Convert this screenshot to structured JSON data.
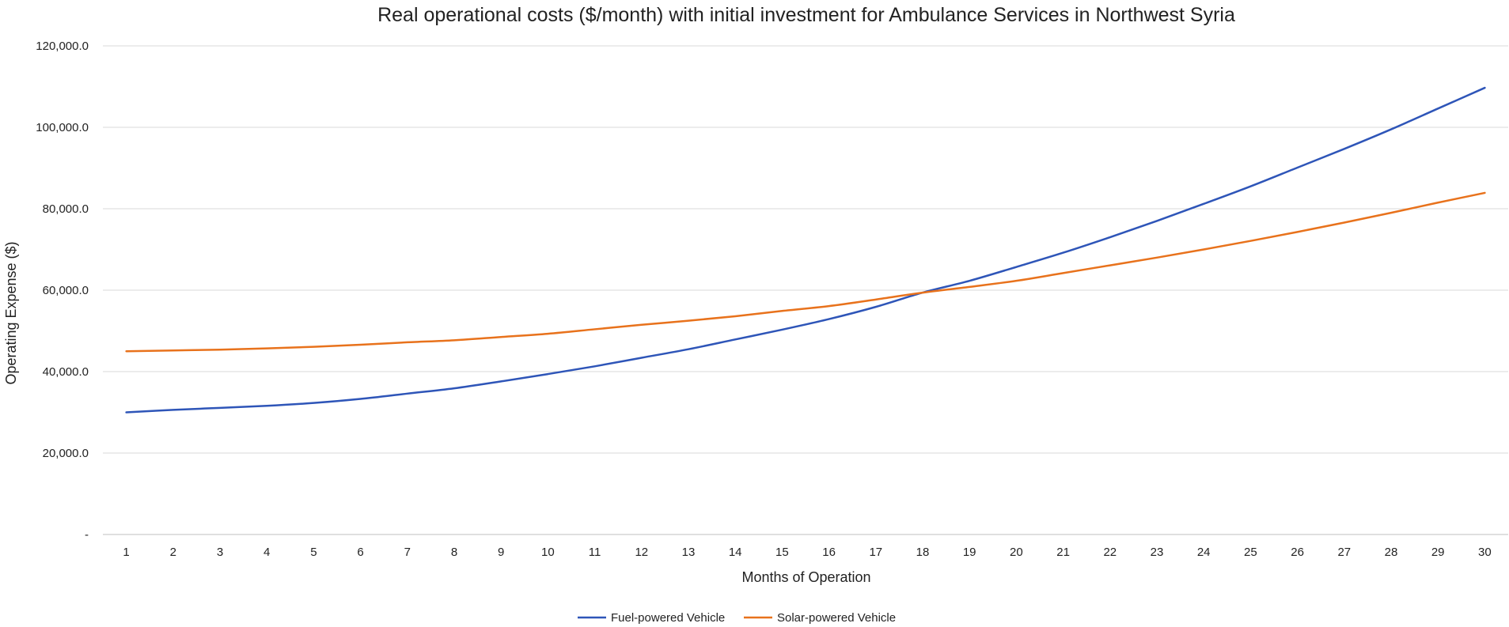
{
  "chart_data": {
    "type": "line",
    "title": "Real operational costs ($/month) with initial investment for Ambulance Services in Northwest Syria",
    "xlabel": "Months of Operation",
    "ylabel": "Operating Expense ($)",
    "categories": [
      "1",
      "2",
      "3",
      "4",
      "5",
      "6",
      "7",
      "8",
      "9",
      "10",
      "11",
      "12",
      "13",
      "14",
      "15",
      "16",
      "17",
      "18",
      "19",
      "20",
      "21",
      "22",
      "23",
      "24",
      "25",
      "26",
      "27",
      "28",
      "29",
      "30"
    ],
    "ylim": [
      0,
      120000
    ],
    "yticks": [
      0,
      20000,
      40000,
      60000,
      80000,
      100000,
      120000
    ],
    "ytick_labels": [
      "-",
      "20,000.0",
      "40,000.0",
      "60,000.0",
      "80,000.0",
      "100,000.0",
      "120,000.0"
    ],
    "grid": true,
    "legend_position": "bottom-center",
    "series": [
      {
        "name": "Fuel-powered Vehicle",
        "color": "#2e55b8",
        "values": [
          30000,
          30600,
          31100,
          31600,
          32300,
          33300,
          34600,
          35900,
          37600,
          39400,
          41300,
          43400,
          45500,
          47900,
          50300,
          52900,
          55900,
          59400,
          62300,
          65700,
          69200,
          73000,
          77000,
          81200,
          85500,
          90100,
          94700,
          99500,
          104600,
          109700
        ]
      },
      {
        "name": "Solar-powered Vehicle",
        "color": "#e8721c",
        "values": [
          45000,
          45200,
          45400,
          45700,
          46100,
          46600,
          47200,
          47700,
          48500,
          49300,
          50400,
          51500,
          52500,
          53600,
          54900,
          56100,
          57700,
          59400,
          60800,
          62300,
          64200,
          66100,
          68000,
          70000,
          72100,
          74300,
          76600,
          79000,
          81500,
          83900
        ]
      }
    ]
  }
}
